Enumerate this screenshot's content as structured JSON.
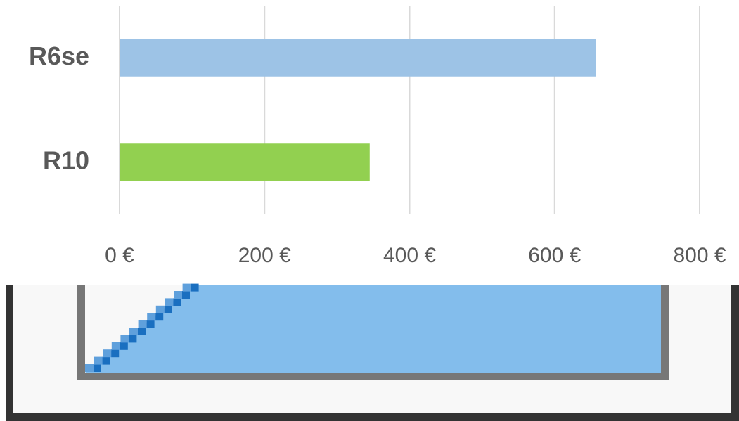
{
  "chart_data": {
    "type": "bar",
    "orientation": "horizontal",
    "categories": [
      "R6se",
      "R10"
    ],
    "values": [
      657,
      345
    ],
    "colors": [
      "#9dc3e6",
      "#92d050"
    ],
    "xlim": [
      0,
      800
    ],
    "xticks": [
      {
        "value": 0,
        "label": "0 €"
      },
      {
        "value": 200,
        "label": "200 €"
      },
      {
        "value": 400,
        "label": "400 €"
      },
      {
        "value": 600,
        "label": "600 €"
      },
      {
        "value": 800,
        "label": "800 €"
      }
    ],
    "grid": true
  }
}
